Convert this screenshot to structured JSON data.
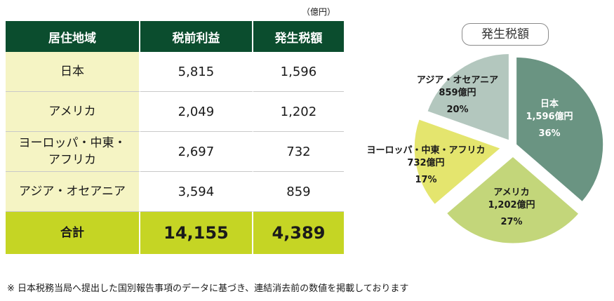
{
  "unit": "（億円）",
  "table": {
    "headers": [
      "居住地域",
      "税前利益",
      "発生税額"
    ],
    "rows": [
      {
        "region": "日本",
        "pretax": "5,815",
        "tax": "1,596"
      },
      {
        "region": "アメリカ",
        "pretax": "2,049",
        "tax": "1,202"
      },
      {
        "region_line1": "ヨーロッパ・中東・",
        "region_line2": "アフリカ",
        "pretax": "2,697",
        "tax": "732"
      },
      {
        "region": "アジア・オセアニア",
        "pretax": "3,594",
        "tax": "859"
      }
    ],
    "total": {
      "label": "合計",
      "pretax": "14,155",
      "tax": "4,389"
    }
  },
  "note": "※ 日本税務当局へ提出した国別報告事項のデータに基づき、連結消去前の数値を掲載しております",
  "chart_data": {
    "type": "pie",
    "title": "発生税額",
    "slices": [
      {
        "name": "日本",
        "value": 1596,
        "value_label": "1,596億円",
        "percent": "36%",
        "color": "#6a9482"
      },
      {
        "name": "アメリカ",
        "value": 1202,
        "value_label": "1,202億円",
        "percent": "27%",
        "color": "#c3d67a"
      },
      {
        "name": "ヨーロッパ・中東・アフリカ",
        "value": 732,
        "value_label": "732億円",
        "percent": "17%",
        "color": "#e4e56e"
      },
      {
        "name": "アジア・オセアニア",
        "value": 859,
        "value_label": "859億円",
        "percent": "20%",
        "color": "#b3c7be"
      }
    ]
  }
}
